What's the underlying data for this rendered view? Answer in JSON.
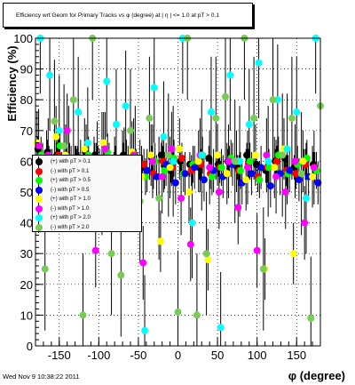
{
  "title": "Efficiency wrt Geom for Primary Tracks vs φ (degree) at | η | <= 1.0 at pT > 0.1",
  "timestamp": "Wed Nov  9 10:38:22 2011",
  "chart_data": {
    "type": "scatter",
    "xlabel": "φ (degree)",
    "ylabel": "Efficiency (%)",
    "xlim": [
      -180,
      180
    ],
    "ylim": [
      0,
      100
    ],
    "xticks": [
      -150,
      -100,
      -50,
      0,
      50,
      100,
      150
    ],
    "yticks": [
      0,
      10,
      20,
      30,
      40,
      50,
      60,
      70,
      80,
      90,
      100
    ],
    "grid": true,
    "legend_position": "left",
    "legend": [
      {
        "label": "(+) with pT > 0.1",
        "color": "#000000",
        "marker": "circle"
      },
      {
        "label": "(-) with pT > 0.1",
        "color": "#ff0000",
        "marker": "circle"
      },
      {
        "label": "(+) with pT > 0.5",
        "color": "#00ff00",
        "marker": "circle"
      },
      {
        "label": "(-) with pT > 0.5",
        "color": "#0000ff",
        "marker": "circle"
      },
      {
        "label": "(+) with pT > 1.0",
        "color": "#ffff00",
        "marker": "circle"
      },
      {
        "label": "(-) with pT > 1.0",
        "color": "#ff00ff",
        "marker": "circle"
      },
      {
        "label": "(+) with pT > 2.0",
        "color": "#00ffff",
        "marker": "circle"
      },
      {
        "label": "(-) with pT > 2.0",
        "color": "#77cc55",
        "marker": "circle"
      }
    ],
    "series": [
      {
        "color": "#000000",
        "x": [
          -177,
          -165,
          -153,
          -141,
          -129,
          -117,
          -105,
          -93,
          -81,
          -69,
          -57,
          -45,
          -33,
          -21,
          -9,
          3,
          15,
          27,
          39,
          51,
          63,
          75,
          87,
          99,
          111,
          123,
          135,
          147,
          159,
          171
        ],
        "y": [
          64,
          63,
          62,
          60,
          61,
          63,
          62,
          60,
          59,
          62,
          60,
          58,
          61,
          62,
          57,
          60,
          59,
          58,
          61,
          59,
          60,
          58,
          62,
          59,
          57,
          60,
          61,
          58,
          60,
          59
        ],
        "err": [
          4,
          4,
          4,
          4,
          4,
          4,
          4,
          4,
          4,
          4,
          4,
          4,
          4,
          4,
          4,
          4,
          4,
          4,
          4,
          4,
          4,
          4,
          4,
          4,
          4,
          4,
          4,
          4,
          4,
          4
        ]
      },
      {
        "color": "#ff0000",
        "x": [
          -175,
          -163,
          -151,
          -139,
          -127,
          -115,
          -103,
          -91,
          -79,
          -67,
          -55,
          -43,
          -31,
          -19,
          -7,
          5,
          17,
          29,
          41,
          53,
          65,
          77,
          89,
          101,
          113,
          125,
          137,
          149,
          161,
          173
        ],
        "y": [
          61,
          60,
          62,
          58,
          60,
          59,
          61,
          57,
          60,
          58,
          57,
          59,
          56,
          60,
          58,
          61,
          57,
          59,
          56,
          58,
          60,
          57,
          59,
          55,
          58,
          60,
          57,
          56,
          59,
          58
        ],
        "err": [
          5,
          5,
          5,
          5,
          5,
          5,
          5,
          5,
          5,
          5,
          5,
          5,
          5,
          5,
          5,
          5,
          5,
          5,
          5,
          5,
          5,
          5,
          5,
          5,
          5,
          5,
          5,
          5,
          5,
          5
        ]
      },
      {
        "color": "#00ff00",
        "x": [
          -173,
          -161,
          -149,
          -137,
          -125,
          -113,
          -101,
          -89,
          -77,
          -65,
          -53,
          -41,
          -29,
          -17,
          -5,
          7,
          19,
          31,
          43,
          55,
          67,
          79,
          91,
          103,
          115,
          127,
          139,
          151,
          163,
          175
        ],
        "y": [
          62,
          58,
          65,
          60,
          57,
          62,
          59,
          63,
          56,
          61,
          58,
          55,
          60,
          57,
          61,
          56,
          59,
          62,
          55,
          58,
          61,
          57,
          60,
          54,
          58,
          62,
          56,
          59,
          61,
          57
        ],
        "err": [
          6,
          6,
          6,
          6,
          6,
          6,
          6,
          6,
          6,
          6,
          6,
          6,
          6,
          6,
          6,
          6,
          6,
          6,
          6,
          6,
          6,
          6,
          6,
          6,
          6,
          6,
          6,
          6,
          6,
          6
        ]
      },
      {
        "color": "#0000ff",
        "x": [
          -171,
          -159,
          -147,
          -135,
          -123,
          -111,
          -99,
          -87,
          -75,
          -63,
          -51,
          -39,
          -27,
          -15,
          -3,
          9,
          21,
          33,
          45,
          57,
          69,
          81,
          93,
          105,
          117,
          129,
          141,
          153,
          165,
          177
        ],
        "y": [
          59,
          57,
          56,
          58,
          60,
          55,
          57,
          59,
          54,
          58,
          56,
          57,
          55,
          59,
          53,
          56,
          58,
          54,
          57,
          55,
          59,
          53,
          56,
          58,
          52,
          56,
          57,
          54,
          55,
          53
        ],
        "err": [
          7,
          7,
          7,
          7,
          7,
          7,
          7,
          7,
          7,
          7,
          7,
          7,
          7,
          7,
          7,
          7,
          7,
          7,
          7,
          7,
          7,
          7,
          7,
          7,
          7,
          7,
          7,
          7,
          7,
          7
        ]
      },
      {
        "color": "#ffff00",
        "x": [
          -178,
          -166,
          -154,
          -142,
          -130,
          -118,
          -106,
          -94,
          -82,
          -70,
          -58,
          -46,
          -34,
          -22,
          -10,
          2,
          14,
          26,
          38,
          50,
          62,
          74,
          86,
          98,
          110,
          122,
          134,
          146,
          158,
          170
        ],
        "y": [
          66,
          60,
          68,
          62,
          55,
          64,
          58,
          66,
          52,
          60,
          63,
          55,
          62,
          34,
          58,
          64,
          50,
          60,
          28,
          62,
          56,
          60,
          54,
          62,
          25,
          58,
          64,
          30,
          60,
          55
        ],
        "err": [
          10,
          10,
          10,
          10,
          10,
          10,
          10,
          10,
          10,
          10,
          10,
          10,
          10,
          10,
          10,
          10,
          10,
          10,
          10,
          10,
          10,
          10,
          10,
          10,
          10,
          10,
          10,
          10,
          10,
          10
        ]
      },
      {
        "color": "#ff00ff",
        "x": [
          -176,
          -164,
          -152,
          -140,
          -128,
          -116,
          -104,
          -92,
          -80,
          -68,
          -56,
          -44,
          -32,
          -20,
          -8,
          4,
          16,
          28,
          40,
          52,
          64,
          76,
          88,
          100,
          112,
          124,
          136,
          148,
          160,
          172
        ],
        "y": [
          65,
          62,
          58,
          70,
          52,
          60,
          31,
          64,
          56,
          59,
          62,
          27,
          60,
          55,
          64,
          48,
          33,
          62,
          58,
          50,
          60,
          45,
          58,
          31,
          62,
          55,
          50,
          60,
          40,
          58
        ],
        "err": [
          12,
          12,
          12,
          12,
          12,
          12,
          12,
          12,
          12,
          12,
          12,
          12,
          12,
          12,
          12,
          12,
          12,
          12,
          12,
          12,
          12,
          12,
          12,
          12,
          12,
          12,
          12,
          12,
          12,
          12
        ]
      },
      {
        "color": "#00ffff",
        "x": [
          -174,
          -162,
          -150,
          -138,
          -126,
          -114,
          -102,
          -90,
          -78,
          -66,
          -54,
          -42,
          -30,
          -18,
          -6,
          6,
          18,
          30,
          42,
          54,
          66,
          78,
          90,
          102,
          114,
          126,
          138,
          150,
          162,
          174
        ],
        "y": [
          100,
          88,
          70,
          60,
          76,
          66,
          55,
          86,
          72,
          78,
          60,
          5,
          84,
          68,
          60,
          100,
          40,
          62,
          76,
          6,
          88,
          60,
          72,
          92,
          60,
          80,
          64,
          76,
          48,
          100
        ],
        "err": [
          18,
          18,
          18,
          18,
          18,
          18,
          18,
          18,
          18,
          18,
          18,
          18,
          18,
          18,
          18,
          18,
          18,
          18,
          18,
          18,
          18,
          18,
          18,
          18,
          18,
          18,
          18,
          18,
          18,
          18
        ]
      },
      {
        "color": "#77cc55",
        "x": [
          -168,
          -156,
          -144,
          -132,
          -120,
          -108,
          -96,
          -84,
          -72,
          -60,
          -48,
          -36,
          -24,
          -12,
          0,
          12,
          24,
          36,
          48,
          60,
          72,
          84,
          96,
          108,
          120,
          132,
          144,
          156,
          168,
          180
        ],
        "y": [
          25,
          73,
          65,
          80,
          10,
          100,
          56,
          30,
          23,
          70,
          47,
          74,
          48,
          62,
          11,
          100,
          10,
          30,
          74,
          81,
          60,
          100,
          74,
          25,
          80,
          62,
          74,
          56,
          9,
          78
        ],
        "err": [
          20,
          20,
          20,
          20,
          20,
          20,
          20,
          20,
          20,
          20,
          20,
          20,
          20,
          20,
          20,
          20,
          20,
          20,
          20,
          20,
          20,
          20,
          20,
          20,
          20,
          20,
          20,
          20,
          20,
          20
        ]
      }
    ]
  }
}
